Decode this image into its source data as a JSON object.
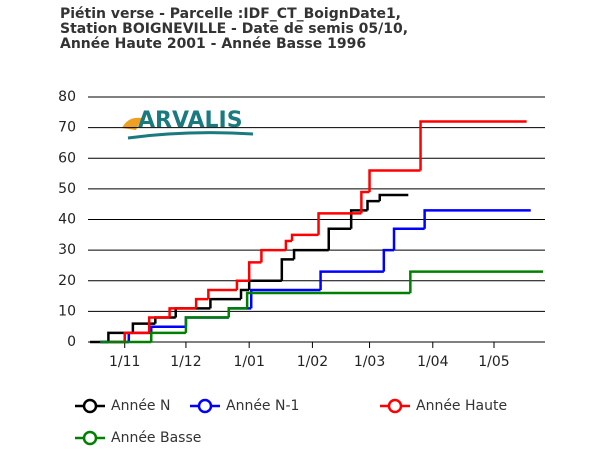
{
  "chart_data": {
    "type": "line",
    "step": true,
    "title": [
      "Piétin verse - Parcelle :IDF_CT_BoignDate1,",
      "Station BOIGNEVILLE - Date de semis 05/10,",
      "Année Haute 2001 - Année Basse 1996"
    ],
    "logo": "ARVALIS",
    "xlim": [
      13,
      237
    ],
    "xticks": [
      {
        "value": 31,
        "label": "1/11"
      },
      {
        "value": 61,
        "label": "1/12"
      },
      {
        "value": 92,
        "label": "1/01"
      },
      {
        "value": 123,
        "label": "1/02"
      },
      {
        "value": 151,
        "label": "1/03"
      },
      {
        "value": 182,
        "label": "1/04"
      },
      {
        "value": 212,
        "label": "1/05"
      }
    ],
    "ylim": [
      0,
      80
    ],
    "yticks": [
      0,
      10,
      20,
      30,
      40,
      50,
      60,
      70,
      80
    ],
    "grid": true,
    "series": [
      {
        "name": "Année N",
        "color": "#000000",
        "x": [
          14,
          23,
          35,
          46,
          56,
          73,
          88,
          92,
          108,
          114,
          131,
          142,
          150,
          156,
          170
        ],
        "values": [
          0,
          3,
          6,
          8,
          11,
          14,
          17,
          20,
          27,
          30,
          37,
          43,
          46,
          48,
          48
        ]
      },
      {
        "name": "Année N-1",
        "color": "#0000ff",
        "x": [
          19,
          33,
          44,
          61,
          82,
          93,
          127,
          158,
          163,
          178,
          230
        ],
        "values": [
          0,
          3,
          5,
          8,
          11,
          17,
          23,
          30,
          37,
          43,
          43
        ]
      },
      {
        "name": "Année Haute",
        "color": "#ff0000",
        "x": [
          24,
          31,
          43,
          53,
          66,
          72,
          86,
          92,
          98,
          110,
          113,
          126,
          147,
          151,
          176,
          228
        ],
        "values": [
          0,
          3,
          8,
          11,
          14,
          17,
          20,
          26,
          30,
          33,
          35,
          42,
          49,
          56,
          72,
          72
        ]
      },
      {
        "name": "Année Basse",
        "color": "#008000",
        "x": [
          19,
          39,
          44,
          61,
          82,
          91,
          171,
          236
        ],
        "values": [
          0,
          0,
          3,
          8,
          11,
          16,
          23,
          23
        ]
      }
    ]
  }
}
